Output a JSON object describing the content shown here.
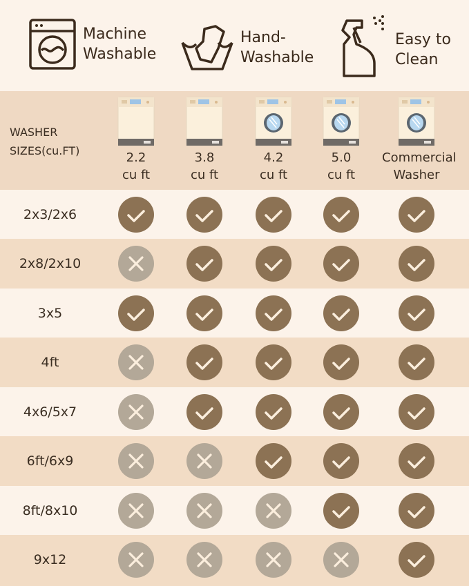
{
  "features": [
    {
      "icon": "washing-machine-icon",
      "label_line1": "Machine",
      "label_line2": "Washable"
    },
    {
      "icon": "hand-wash-icon",
      "label_line1": "Hand-",
      "label_line2": "Washable"
    },
    {
      "icon": "spray-bottle-icon",
      "label_line1": "Easy to",
      "label_line2": "Clean"
    }
  ],
  "table": {
    "row_header": "WASHER\nSIZES(cu.FT)",
    "columns": [
      {
        "label": "2.2\ncu ft",
        "icon": "washer-top-load-icon"
      },
      {
        "label": "3.8\ncu ft",
        "icon": "washer-top-load-icon"
      },
      {
        "label": "4.2\ncu ft",
        "icon": "washer-front-load-icon"
      },
      {
        "label": "5.0\ncu ft",
        "icon": "washer-front-load-icon"
      },
      {
        "label": "Commercial\nWasher",
        "icon": "washer-front-load-icon"
      }
    ],
    "rows": [
      {
        "size": "2x3/2x6",
        "fits": [
          true,
          true,
          true,
          true,
          true
        ]
      },
      {
        "size": "2x8/2x10",
        "fits": [
          false,
          true,
          true,
          true,
          true
        ]
      },
      {
        "size": "3x5",
        "fits": [
          true,
          true,
          true,
          true,
          true
        ]
      },
      {
        "size": "4ft",
        "fits": [
          false,
          true,
          true,
          true,
          true
        ]
      },
      {
        "size": "4x6/5x7",
        "fits": [
          false,
          true,
          true,
          true,
          true
        ]
      },
      {
        "size": "6ft/6x9",
        "fits": [
          false,
          false,
          true,
          true,
          true
        ]
      },
      {
        "size": "8ft/8x10",
        "fits": [
          false,
          false,
          false,
          true,
          true
        ]
      },
      {
        "size": "9x12",
        "fits": [
          false,
          false,
          false,
          false,
          true
        ]
      }
    ]
  },
  "colors": {
    "check": "#8c7254",
    "cross": "#b3a898",
    "mark": "#fbeedd",
    "alt_row": "#f2dcc5",
    "header": "#efd9c3",
    "background": "#fcf3ea"
  }
}
